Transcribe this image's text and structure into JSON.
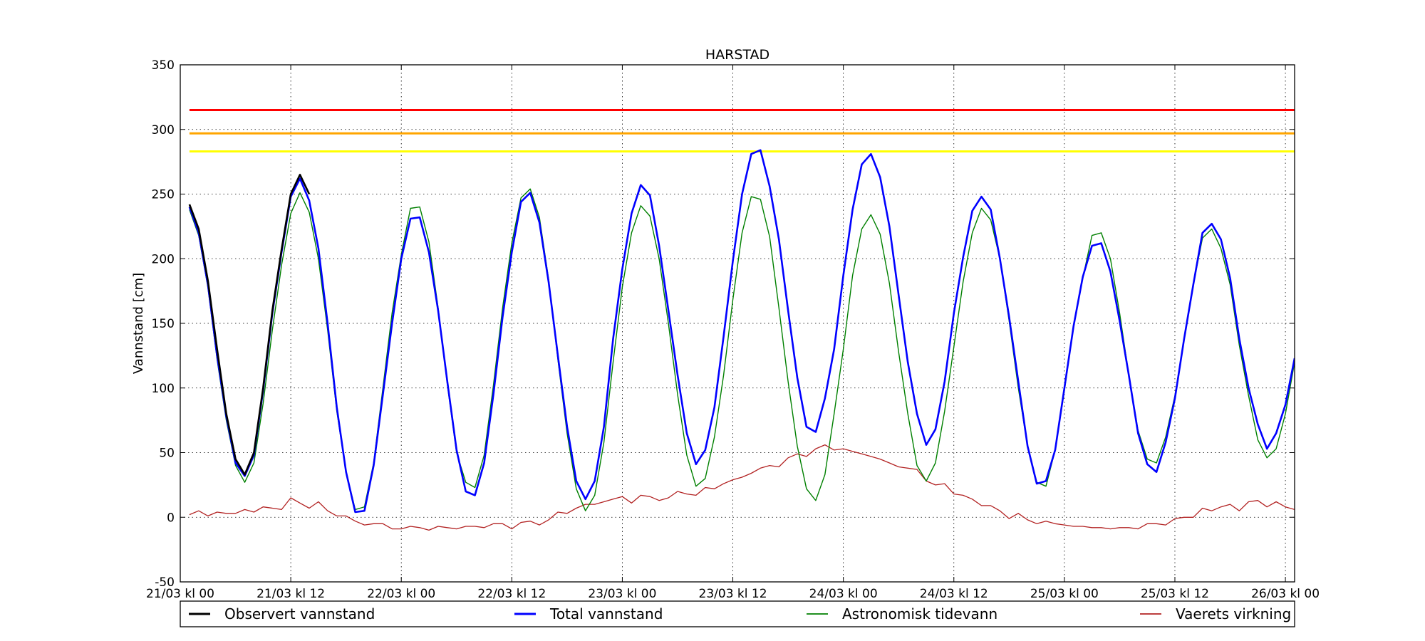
{
  "chart_data": {
    "type": "line",
    "title": "HARSTAD",
    "xlabel": "",
    "ylabel": "Vannstand [cm]",
    "xlim": [
      0,
      121
    ],
    "ylim": [
      -50,
      350
    ],
    "x_ticks": [
      {
        "value": 0,
        "label": "21/03 kl 00"
      },
      {
        "value": 12,
        "label": "21/03 kl 12"
      },
      {
        "value": 24,
        "label": "22/03 kl 00"
      },
      {
        "value": 36,
        "label": "22/03 kl 12"
      },
      {
        "value": 48,
        "label": "23/03 kl 00"
      },
      {
        "value": 60,
        "label": "23/03 kl 12"
      },
      {
        "value": 72,
        "label": "24/03 kl 00"
      },
      {
        "value": 84,
        "label": "24/03 kl 12"
      },
      {
        "value": 96,
        "label": "25/03 kl 00"
      },
      {
        "value": 108,
        "label": "25/03 kl 12"
      },
      {
        "value": 120,
        "label": "26/03 kl 00"
      }
    ],
    "y_ticks": [
      -50,
      0,
      50,
      100,
      150,
      200,
      250,
      300,
      350
    ],
    "grid": true,
    "legend_position": "bottom",
    "threshold_lines": [
      {
        "value": 315,
        "color": "#ff0000"
      },
      {
        "value": 297,
        "color": "#ffa500"
      },
      {
        "value": 283,
        "color": "#ffff00"
      }
    ],
    "series": [
      {
        "name": "Observert vannstand",
        "color": "#000000",
        "width": 2.6,
        "x": [
          1,
          2,
          3,
          4,
          5,
          6,
          7,
          8,
          9,
          10,
          11,
          12,
          13,
          14
        ],
        "y": [
          242,
          223,
          183,
          130,
          80,
          45,
          33,
          50,
          100,
          160,
          207,
          250,
          265,
          250
        ]
      },
      {
        "name": "Total vannstand",
        "color": "#0000ff",
        "width": 2.6,
        "x": [
          1,
          2,
          3,
          4,
          5,
          6,
          7,
          8,
          9,
          10,
          11,
          12,
          13,
          14,
          15,
          16,
          17,
          18,
          19,
          20,
          21,
          22,
          23,
          24,
          25,
          26,
          27,
          28,
          29,
          30,
          31,
          32,
          33,
          34,
          35,
          36,
          37,
          38,
          39,
          40,
          41,
          42,
          43,
          44,
          45,
          46,
          47,
          48,
          49,
          50,
          51,
          52,
          53,
          54,
          55,
          56,
          57,
          58,
          59,
          60,
          61,
          62,
          63,
          64,
          65,
          66,
          67,
          68,
          69,
          70,
          71,
          72,
          73,
          74,
          75,
          76,
          77,
          78,
          79,
          80,
          81,
          82,
          83,
          84,
          85,
          86,
          87,
          88,
          89,
          90,
          91,
          92,
          93,
          94,
          95,
          96,
          97,
          98,
          99,
          100,
          101,
          102,
          103,
          104,
          105,
          106,
          107,
          108,
          109,
          110,
          111,
          112,
          113,
          114,
          115,
          116,
          117,
          118,
          119,
          120,
          121
        ],
        "y": [
          240,
          220,
          180,
          125,
          78,
          42,
          32,
          48,
          98,
          158,
          205,
          248,
          262,
          245,
          208,
          150,
          85,
          35,
          4,
          5,
          40,
          95,
          150,
          200,
          231,
          232,
          205,
          160,
          105,
          52,
          20,
          17,
          42,
          95,
          155,
          205,
          244,
          251,
          228,
          182,
          125,
          70,
          28,
          14,
          28,
          70,
          138,
          192,
          235,
          257,
          249,
          210,
          160,
          110,
          65,
          41,
          52,
          85,
          140,
          198,
          250,
          281,
          284,
          256,
          215,
          160,
          108,
          70,
          66,
          92,
          130,
          187,
          238,
          273,
          281,
          263,
          225,
          172,
          120,
          80,
          56,
          68,
          105,
          158,
          201,
          237,
          248,
          238,
          200,
          155,
          105,
          55,
          26,
          28,
          52,
          100,
          148,
          186,
          210,
          212,
          190,
          152,
          110,
          65,
          41,
          35,
          58,
          92,
          138,
          180,
          220,
          227,
          215,
          185,
          138,
          100,
          72,
          53,
          65,
          87,
          123
        ]
      },
      {
        "name": "Astronomisk tidevann",
        "color": "#008000",
        "width": 1.4,
        "x": [
          1,
          2,
          3,
          4,
          5,
          6,
          7,
          8,
          9,
          10,
          11,
          12,
          13,
          14,
          15,
          16,
          17,
          18,
          19,
          20,
          21,
          22,
          23,
          24,
          25,
          26,
          27,
          28,
          29,
          30,
          31,
          32,
          33,
          34,
          35,
          36,
          37,
          38,
          39,
          40,
          41,
          42,
          43,
          44,
          45,
          46,
          47,
          48,
          49,
          50,
          51,
          52,
          53,
          54,
          55,
          56,
          57,
          58,
          59,
          60,
          61,
          62,
          63,
          64,
          65,
          66,
          67,
          68,
          69,
          70,
          71,
          72,
          73,
          74,
          75,
          76,
          77,
          78,
          79,
          80,
          81,
          82,
          83,
          84,
          85,
          86,
          87,
          88,
          89,
          90,
          91,
          92,
          93,
          94,
          95,
          96,
          97,
          98,
          99,
          100,
          101,
          102,
          103,
          104,
          105,
          106,
          107,
          108,
          109,
          110,
          111,
          112,
          113,
          114,
          115,
          116,
          117,
          118,
          119,
          120,
          121
        ],
        "y": [
          238,
          218,
          178,
          122,
          75,
          40,
          27,
          42,
          88,
          145,
          195,
          235,
          251,
          236,
          200,
          145,
          82,
          35,
          6,
          8,
          42,
          100,
          158,
          203,
          239,
          240,
          213,
          162,
          103,
          50,
          27,
          23,
          48,
          102,
          162,
          212,
          247,
          254,
          232,
          184,
          122,
          65,
          22,
          5,
          17,
          58,
          120,
          178,
          220,
          241,
          233,
          200,
          150,
          95,
          48,
          24,
          30,
          62,
          110,
          168,
          220,
          248,
          246,
          217,
          162,
          105,
          55,
          22,
          13,
          33,
          80,
          130,
          187,
          223,
          234,
          219,
          181,
          128,
          80,
          40,
          28,
          42,
          82,
          132,
          182,
          220,
          239,
          230,
          200,
          152,
          100,
          55,
          27,
          24,
          52,
          98,
          148,
          185,
          218,
          220,
          200,
          158,
          110,
          67,
          45,
          42,
          62,
          94,
          138,
          180,
          216,
          223,
          208,
          180,
          133,
          94,
          60,
          46,
          53,
          80,
          120
        ]
      },
      {
        "name": "Vaerets virkning",
        "color": "#b22222",
        "width": 1.3,
        "x": [
          1,
          2,
          3,
          4,
          5,
          6,
          7,
          8,
          9,
          10,
          11,
          12,
          13,
          14,
          15,
          16,
          17,
          18,
          19,
          20,
          21,
          22,
          23,
          24,
          25,
          26,
          27,
          28,
          29,
          30,
          31,
          32,
          33,
          34,
          35,
          36,
          37,
          38,
          39,
          40,
          41,
          42,
          43,
          44,
          45,
          46,
          47,
          48,
          49,
          50,
          51,
          52,
          53,
          54,
          55,
          56,
          57,
          58,
          59,
          60,
          61,
          62,
          63,
          64,
          65,
          66,
          67,
          68,
          69,
          70,
          71,
          72,
          73,
          74,
          75,
          76,
          77,
          78,
          79,
          80,
          81,
          82,
          83,
          84,
          85,
          86,
          87,
          88,
          89,
          90,
          91,
          92,
          93,
          94,
          95,
          96,
          97,
          98,
          99,
          100,
          101,
          102,
          103,
          104,
          105,
          106,
          107,
          108,
          109,
          110,
          111,
          112,
          113,
          114,
          115,
          116,
          117,
          118,
          119,
          120,
          121
        ],
        "y": [
          2,
          5,
          1,
          4,
          3,
          3,
          6,
          4,
          8,
          7,
          6,
          15,
          11,
          7,
          12,
          5,
          1,
          1,
          -3,
          -6,
          -5,
          -5,
          -9,
          -9,
          -7,
          -8,
          -10,
          -7,
          -8,
          -9,
          -7,
          -7,
          -8,
          -5,
          -5,
          -9,
          -4,
          -3,
          -6,
          -2,
          4,
          3,
          7,
          10,
          10,
          12,
          14,
          16,
          11,
          17,
          16,
          13,
          15,
          20,
          18,
          17,
          23,
          22,
          26,
          29,
          31,
          34,
          38,
          40,
          39,
          46,
          49,
          47,
          53,
          56,
          52,
          53,
          51,
          49,
          47,
          45,
          42,
          39,
          38,
          37,
          28,
          25,
          26,
          18,
          17,
          14,
          9,
          9,
          5,
          -1,
          3,
          -2,
          -5,
          -3,
          -5,
          -6,
          -7,
          -7,
          -8,
          -8,
          -9,
          -8,
          -8,
          -9,
          -5,
          -5,
          -6,
          -1,
          0,
          0,
          7,
          5,
          8,
          10,
          5,
          12,
          13,
          8,
          12,
          8,
          6
        ]
      }
    ]
  }
}
